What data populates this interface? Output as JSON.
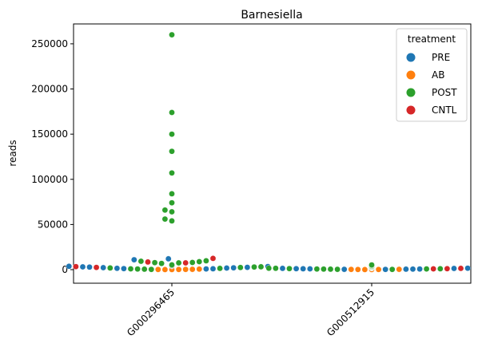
{
  "chart_data": {
    "type": "scatter",
    "title": "Barnesiella",
    "xlabel": "",
    "ylabel": "reads",
    "categories": [
      "G000296465",
      "G000512915"
    ],
    "ylim": [
      -15000,
      272000
    ],
    "yticks": [
      0,
      50000,
      100000,
      150000,
      200000,
      250000
    ],
    "ytick_labels": [
      "0",
      "50000",
      "100000",
      "150000",
      "200000",
      "250000"
    ],
    "grid": false,
    "legend": {
      "title": "treatment",
      "placement": "top-right"
    },
    "series": [
      {
        "name": "PRE",
        "color": "#1f77b4",
        "points": [
          {
            "category": "G000296465",
            "values": [
              4600,
              4000,
              3500,
              2800,
              2200,
              1800,
              1200,
              1000,
              800,
              12000,
              11000,
              4200,
              3700,
              3100,
              2600,
              2000,
              1500
            ]
          },
          {
            "category": "G000512915",
            "values": [
              2600,
              2300,
              2000,
              1700,
              1400,
              1100,
              900,
              700,
              600,
              500,
              400,
              300,
              1000,
              1300,
              1600,
              1900,
              2200
            ]
          }
        ]
      },
      {
        "name": "AB",
        "color": "#ff7f0e",
        "points": [
          {
            "category": "G000296465",
            "values": [
              600,
              400,
              300,
              200,
              150,
              100,
              80
            ]
          },
          {
            "category": "G000512915",
            "values": [
              400,
              300,
              200,
              150,
              100,
              80
            ]
          }
        ]
      },
      {
        "name": "POST",
        "color": "#2ca02c",
        "points": [
          {
            "category": "G000296465",
            "values": [
              260000,
              174000,
              150000,
              131000,
              107000,
              84000,
              74000,
              66000,
              64000,
              56000,
              54000,
              5300,
              4900,
              9800,
              9300,
              8800,
              7800,
              6900,
              8000,
              7500,
              3200,
              2900,
              2400,
              1900,
              1400,
              900,
              700,
              500,
              300
            ]
          },
          {
            "category": "G000512915",
            "values": [
              5200,
              5000,
              4700,
              3600,
              3300,
              3100,
              2800,
              2500,
              2200,
              1900,
              1700,
              1500,
              1200,
              1000,
              800,
              700,
              600,
              500,
              400,
              300,
              4500,
              3900,
              2700,
              2400,
              2100,
              1800,
              1600
            ]
          }
        ]
      },
      {
        "name": "CNTL",
        "color": "#d62728",
        "points": [
          {
            "category": "G000296465",
            "values": [
              12500,
              8500,
              7500,
              4200,
              3400,
              2500
            ]
          },
          {
            "category": "G000512915",
            "values": [
              1800,
              1400,
              1100,
              900
            ]
          }
        ]
      }
    ]
  }
}
